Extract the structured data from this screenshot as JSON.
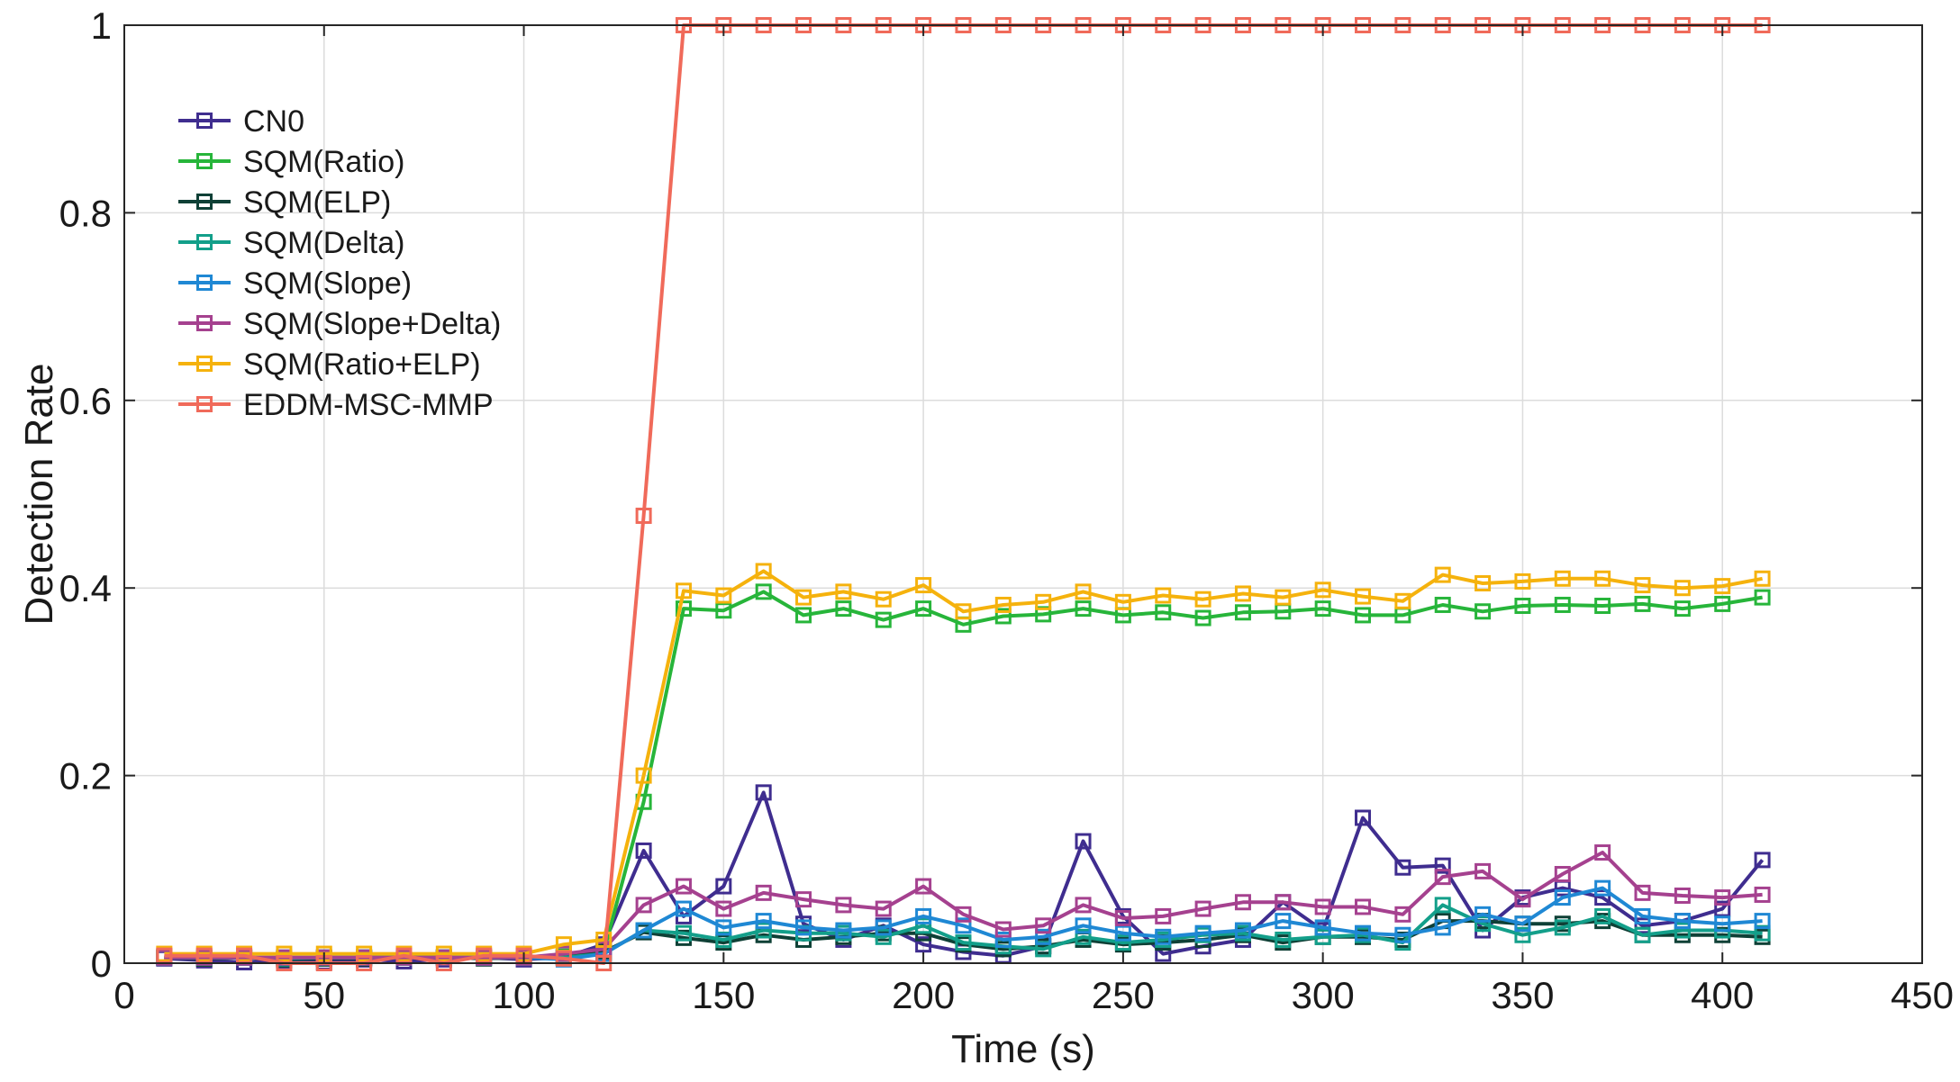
{
  "chart_data": {
    "type": "line",
    "title": "",
    "xlabel": "Time (s)",
    "ylabel": "Detection Rate",
    "xlim": [
      0,
      450
    ],
    "ylim": [
      0,
      1
    ],
    "xticks": [
      0,
      50,
      100,
      150,
      200,
      250,
      300,
      350,
      400,
      450
    ],
    "yticks": [
      0,
      0.2,
      0.4,
      0.6,
      0.8,
      1
    ],
    "xtick_labels": [
      "0",
      "50",
      "100",
      "150",
      "200",
      "250",
      "300",
      "350",
      "400",
      "450"
    ],
    "ytick_labels": [
      "0",
      "0.2",
      "0.4",
      "0.6",
      "0.8",
      "1"
    ],
    "grid": true,
    "legend_position": "top-left",
    "marker": "square",
    "x": [
      10,
      20,
      30,
      40,
      50,
      60,
      70,
      80,
      90,
      100,
      110,
      120,
      130,
      140,
      150,
      160,
      170,
      180,
      190,
      200,
      210,
      220,
      230,
      240,
      250,
      260,
      270,
      280,
      290,
      300,
      310,
      320,
      330,
      340,
      350,
      360,
      370,
      380,
      390,
      400,
      410
    ],
    "series": [
      {
        "name": "CN0",
        "color": "#3f2d8f",
        "values": [
          0.005,
          0.003,
          0.001,
          0.003,
          0.001,
          0.004,
          0.002,
          0.004,
          0.006,
          0.004,
          0.006,
          0.02,
          0.12,
          0.05,
          0.082,
          0.182,
          0.042,
          0.025,
          0.04,
          0.02,
          0.012,
          0.008,
          0.018,
          0.13,
          0.05,
          0.01,
          0.018,
          0.025,
          0.065,
          0.035,
          0.155,
          0.102,
          0.104,
          0.035,
          0.07,
          0.08,
          0.07,
          0.04,
          0.045,
          0.058,
          0.11
        ]
      },
      {
        "name": "SQM(Ratio)",
        "color": "#27b53a",
        "values": [
          0.007,
          0.005,
          0.006,
          0.005,
          0.005,
          0.006,
          0.007,
          0.006,
          0.006,
          0.006,
          0.007,
          0.012,
          0.172,
          0.378,
          0.376,
          0.396,
          0.371,
          0.378,
          0.366,
          0.378,
          0.361,
          0.37,
          0.372,
          0.378,
          0.371,
          0.374,
          0.368,
          0.374,
          0.375,
          0.378,
          0.371,
          0.371,
          0.382,
          0.375,
          0.381,
          0.382,
          0.381,
          0.383,
          0.378,
          0.383,
          0.39
        ]
      },
      {
        "name": "SQM(ELP)",
        "color": "#0f4036",
        "values": [
          0.006,
          0.005,
          0.006,
          0.004,
          0.005,
          0.005,
          0.006,
          0.006,
          0.005,
          0.006,
          0.006,
          0.012,
          0.033,
          0.027,
          0.022,
          0.03,
          0.025,
          0.028,
          0.032,
          0.032,
          0.02,
          0.015,
          0.018,
          0.025,
          0.02,
          0.022,
          0.025,
          0.03,
          0.022,
          0.028,
          0.028,
          0.025,
          0.045,
          0.045,
          0.042,
          0.042,
          0.045,
          0.03,
          0.03,
          0.03,
          0.028
        ]
      },
      {
        "name": "SQM(Delta)",
        "color": "#139f8a",
        "values": [
          0.006,
          0.006,
          0.006,
          0.005,
          0.006,
          0.006,
          0.006,
          0.006,
          0.006,
          0.006,
          0.006,
          0.01,
          0.035,
          0.032,
          0.025,
          0.035,
          0.032,
          0.032,
          0.028,
          0.04,
          0.022,
          0.018,
          0.015,
          0.028,
          0.022,
          0.025,
          0.03,
          0.032,
          0.025,
          0.028,
          0.03,
          0.022,
          0.062,
          0.042,
          0.03,
          0.038,
          0.05,
          0.03,
          0.035,
          0.035,
          0.032
        ]
      },
      {
        "name": "SQM(Slope)",
        "color": "#1f88d4",
        "values": [
          0.006,
          0.006,
          0.006,
          0.006,
          0.006,
          0.006,
          0.006,
          0.006,
          0.006,
          0.006,
          0.004,
          0.01,
          0.035,
          0.058,
          0.038,
          0.045,
          0.038,
          0.035,
          0.038,
          0.05,
          0.04,
          0.025,
          0.028,
          0.04,
          0.032,
          0.028,
          0.032,
          0.035,
          0.045,
          0.038,
          0.032,
          0.03,
          0.038,
          0.052,
          0.042,
          0.07,
          0.08,
          0.05,
          0.045,
          0.042,
          0.045
        ]
      },
      {
        "name": "SQM(Slope+Delta)",
        "color": "#a5418f",
        "values": [
          0.006,
          0.006,
          0.006,
          0.006,
          0.006,
          0.006,
          0.006,
          0.006,
          0.006,
          0.006,
          0.01,
          0.015,
          0.062,
          0.082,
          0.058,
          0.075,
          0.068,
          0.062,
          0.058,
          0.082,
          0.052,
          0.036,
          0.04,
          0.062,
          0.048,
          0.05,
          0.058,
          0.065,
          0.065,
          0.06,
          0.06,
          0.052,
          0.092,
          0.098,
          0.068,
          0.095,
          0.118,
          0.075,
          0.072,
          0.07,
          0.073
        ]
      },
      {
        "name": "SQM(Ratio+ELP)",
        "color": "#f5b20d",
        "values": [
          0.01,
          0.01,
          0.01,
          0.01,
          0.01,
          0.01,
          0.01,
          0.01,
          0.01,
          0.01,
          0.02,
          0.025,
          0.2,
          0.397,
          0.392,
          0.418,
          0.39,
          0.396,
          0.388,
          0.403,
          0.375,
          0.382,
          0.385,
          0.396,
          0.385,
          0.392,
          0.388,
          0.394,
          0.39,
          0.398,
          0.391,
          0.386,
          0.414,
          0.405,
          0.407,
          0.41,
          0.41,
          0.403,
          0.4,
          0.402,
          0.41
        ]
      },
      {
        "name": "EDDM-MSC-MMP",
        "color": "#f06a5a",
        "values": [
          0.008,
          0.008,
          0.008,
          0.0,
          0.0,
          0.0,
          0.008,
          0.0,
          0.008,
          0.008,
          0.005,
          0.0,
          0.477,
          1.0,
          1.0,
          1.0,
          1.0,
          1.0,
          1.0,
          1.0,
          1.0,
          1.0,
          1.0,
          1.0,
          1.0,
          1.0,
          1.0,
          1.0,
          1.0,
          1.0,
          1.0,
          1.0,
          1.0,
          1.0,
          1.0,
          1.0,
          1.0,
          1.0,
          1.0,
          1.0,
          1.0
        ]
      }
    ]
  }
}
